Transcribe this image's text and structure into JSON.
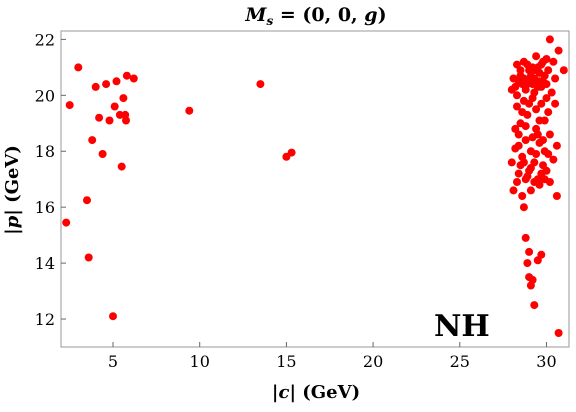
{
  "chart_data": {
    "type": "scatter",
    "title": "M_s = (0, 0, g)",
    "title_parts": {
      "m": "M",
      "sub": "s",
      "rest": " = (0, 0, ",
      "g": "g",
      "close": ")"
    },
    "xlabel_parts": {
      "bar_left": "|",
      "var": "c",
      "bar_right": "|",
      "unit": " (GeV)"
    },
    "ylabel_parts": {
      "bar_left": "|",
      "var": "p",
      "bar_right": "|",
      "unit": " (GeV)"
    },
    "annotation": "NH",
    "xlim": [
      2,
      31.3
    ],
    "ylim": [
      11,
      22.3
    ],
    "xticks": [
      5,
      10,
      15,
      20,
      25,
      30
    ],
    "yticks": [
      12,
      14,
      16,
      18,
      20,
      22
    ],
    "grid": false,
    "marker_color": "#ff0000",
    "points": [
      [
        2.3,
        15.45
      ],
      [
        2.5,
        19.65
      ],
      [
        3.0,
        21.0
      ],
      [
        3.5,
        16.25
      ],
      [
        3.6,
        14.2
      ],
      [
        3.8,
        18.4
      ],
      [
        4.0,
        20.3
      ],
      [
        4.2,
        19.2
      ],
      [
        4.4,
        17.9
      ],
      [
        4.6,
        20.4
      ],
      [
        4.8,
        19.1
      ],
      [
        5.0,
        12.1
      ],
      [
        5.1,
        19.6
      ],
      [
        5.2,
        20.5
      ],
      [
        5.4,
        19.3
      ],
      [
        5.5,
        17.45
      ],
      [
        5.6,
        19.9
      ],
      [
        5.7,
        19.3
      ],
      [
        5.75,
        19.1
      ],
      [
        5.8,
        20.7
      ],
      [
        6.2,
        20.6
      ],
      [
        9.4,
        19.45
      ],
      [
        13.5,
        20.4
      ],
      [
        15.0,
        17.8
      ],
      [
        15.3,
        17.95
      ],
      [
        28.0,
        17.6
      ],
      [
        28.0,
        20.2
      ],
      [
        28.1,
        16.6
      ],
      [
        28.2,
        18.8
      ],
      [
        28.3,
        19.6
      ],
      [
        28.3,
        21.1
      ],
      [
        28.4,
        17.2
      ],
      [
        28.4,
        18.2
      ],
      [
        28.5,
        20.7
      ],
      [
        28.5,
        19.0
      ],
      [
        28.6,
        16.4
      ],
      [
        28.6,
        17.8
      ],
      [
        28.7,
        16.0
      ],
      [
        28.7,
        19.8
      ],
      [
        28.7,
        21.2
      ],
      [
        28.8,
        14.9
      ],
      [
        28.8,
        18.4
      ],
      [
        28.8,
        17.0
      ],
      [
        28.9,
        14.0
      ],
      [
        28.9,
        20.4
      ],
      [
        28.9,
        19.3
      ],
      [
        29.0,
        13.5
      ],
      [
        29.0,
        14.4
      ],
      [
        29.0,
        20.9
      ],
      [
        29.0,
        17.3
      ],
      [
        29.1,
        13.2
      ],
      [
        29.1,
        18.0
      ],
      [
        29.1,
        16.6
      ],
      [
        29.2,
        19.9
      ],
      [
        29.2,
        21.0
      ],
      [
        29.2,
        13.4
      ],
      [
        29.3,
        12.5
      ],
      [
        29.3,
        17.6
      ],
      [
        29.3,
        20.6
      ],
      [
        29.4,
        18.8
      ],
      [
        29.4,
        19.5
      ],
      [
        29.4,
        21.4
      ],
      [
        29.5,
        14.1
      ],
      [
        29.5,
        17.0
      ],
      [
        29.5,
        20.3
      ],
      [
        29.6,
        18.3
      ],
      [
        29.6,
        16.8
      ],
      [
        29.6,
        20.8
      ],
      [
        29.7,
        14.3
      ],
      [
        29.7,
        19.7
      ],
      [
        29.7,
        21.1
      ],
      [
        29.8,
        17.5
      ],
      [
        29.8,
        20.5
      ],
      [
        29.9,
        18.0
      ],
      [
        29.9,
        19.1
      ],
      [
        30.0,
        21.3
      ],
      [
        30.0,
        17.3
      ],
      [
        30.1,
        19.4
      ],
      [
        30.1,
        20.9
      ],
      [
        30.2,
        22.0
      ],
      [
        30.2,
        18.6
      ],
      [
        30.2,
        16.9
      ],
      [
        30.3,
        20.1
      ],
      [
        30.4,
        17.7
      ],
      [
        30.4,
        21.2
      ],
      [
        30.5,
        19.7
      ],
      [
        30.5,
        20.6
      ],
      [
        30.6,
        16.4
      ],
      [
        30.6,
        18.2
      ],
      [
        30.7,
        11.5
      ],
      [
        30.7,
        21.6
      ],
      [
        31.0,
        20.9
      ],
      [
        28.1,
        20.6
      ],
      [
        28.2,
        20.3
      ],
      [
        28.3,
        20.0
      ],
      [
        28.4,
        20.5
      ],
      [
        28.5,
        20.9
      ],
      [
        28.6,
        20.4
      ],
      [
        28.7,
        20.6
      ],
      [
        28.8,
        20.2
      ],
      [
        28.9,
        21.1
      ],
      [
        29.0,
        20.5
      ],
      [
        29.1,
        20.7
      ],
      [
        29.2,
        20.4
      ],
      [
        29.3,
        20.1
      ],
      [
        29.4,
        20.9
      ],
      [
        29.5,
        21.0
      ],
      [
        29.6,
        20.5
      ],
      [
        29.7,
        20.3
      ],
      [
        29.8,
        21.2
      ],
      [
        29.9,
        20.7
      ],
      [
        30.0,
        20.4
      ],
      [
        28.2,
        18.1
      ],
      [
        28.4,
        18.6
      ],
      [
        28.6,
        19.4
      ],
      [
        28.8,
        18.9
      ],
      [
        29.0,
        19.7
      ],
      [
        29.2,
        18.5
      ],
      [
        29.4,
        17.9
      ],
      [
        29.6,
        19.1
      ],
      [
        29.8,
        18.4
      ],
      [
        30.0,
        19.9
      ],
      [
        28.3,
        16.9
      ],
      [
        28.5,
        17.5
      ],
      [
        28.7,
        17.6
      ],
      [
        28.9,
        17.1
      ],
      [
        29.1,
        17.4
      ],
      [
        29.3,
        16.9
      ],
      [
        29.5,
        18.6
      ],
      [
        29.7,
        17.2
      ],
      [
        29.9,
        17.0
      ],
      [
        30.1,
        17.9
      ]
    ]
  }
}
